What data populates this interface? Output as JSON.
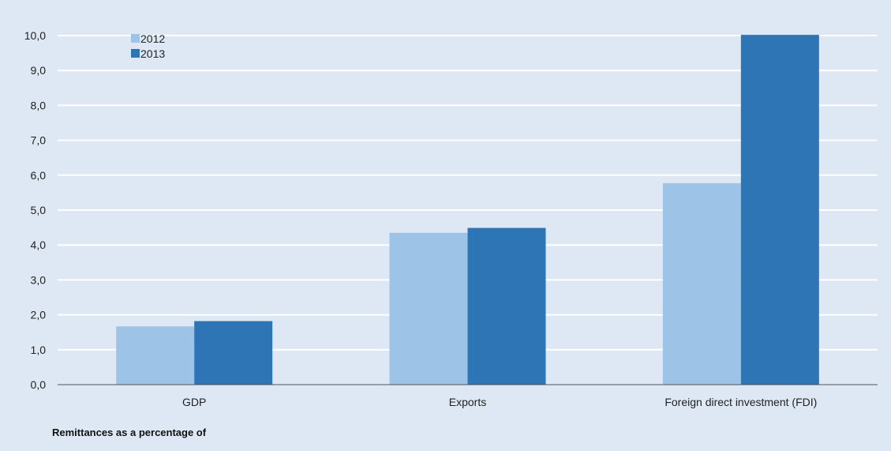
{
  "chart_data": {
    "type": "bar",
    "categories": [
      "GDP",
      "Exports",
      "Foreign direct investment (FDI)"
    ],
    "series": [
      {
        "name": "2012",
        "values": [
          1.67,
          4.35,
          5.77
        ]
      },
      {
        "name": "2013",
        "values": [
          1.82,
          4.49,
          10.02
        ]
      }
    ],
    "xlabel": "Remittances as a percentage of",
    "ylabel": "",
    "ylim": [
      0,
      10
    ],
    "yticks": [
      0,
      1,
      2,
      3,
      4,
      5,
      6,
      7,
      8,
      9,
      10
    ],
    "ytick_labels": [
      "0,0",
      "1,0",
      "2,0",
      "3,0",
      "4,0",
      "5,0",
      "6,0",
      "7,0",
      "8,0",
      "9,0",
      "10,0"
    ],
    "grid": true,
    "legend": "top-left",
    "colors": {
      "background": "#dde8f4",
      "gridline": "#ffffff",
      "axis": "#555555",
      "series": [
        "#9dc3e6",
        "#2e75b6"
      ]
    }
  }
}
